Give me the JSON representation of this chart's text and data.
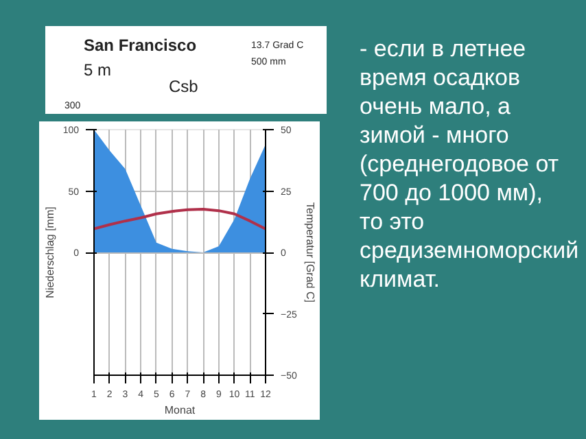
{
  "chart_data": {
    "type": "area",
    "title": "San Francisco",
    "annotations": [
      "5 m",
      "13.7 Grad C",
      "500 mm",
      "Csb",
      "300",
      "- если в летнее время осадков очень мало, а зимой - много (среднегодовое от 700 до 1000 мм), то это средиземноморский климат."
    ],
    "x": [
      1,
      2,
      3,
      4,
      5,
      6,
      7,
      8,
      9,
      10,
      11,
      12
    ],
    "xlim": [
      1,
      12
    ],
    "xticks": [
      1,
      2,
      3,
      4,
      5,
      6,
      7,
      8,
      9,
      10,
      11,
      12
    ],
    "xlabel": "Monat",
    "ylabel": "Niederschlag [mm]",
    "y2label": "Temperatur [Grad C]",
    "ylim": [
      -100,
      100
    ],
    "yticks": [
      0,
      50,
      100
    ],
    "y2lim": [
      -50,
      50
    ],
    "y2ticks": [
      -50,
      -25,
      0,
      25,
      50
    ],
    "grid": true,
    "series": [
      {
        "color": "#3d8fe0",
        "values": [
          100,
          83,
          68,
          38,
          8,
          3,
          1,
          0,
          5,
          27,
          60,
          88
        ]
      },
      {
        "type": "line",
        "axis": "y2",
        "color": "#b0304a",
        "values": [
          9.6,
          11.3,
          12.8,
          14.1,
          15.7,
          16.7,
          17.4,
          17.6,
          17.0,
          15.7,
          12.8,
          9.6
        ]
      }
    ]
  }
}
